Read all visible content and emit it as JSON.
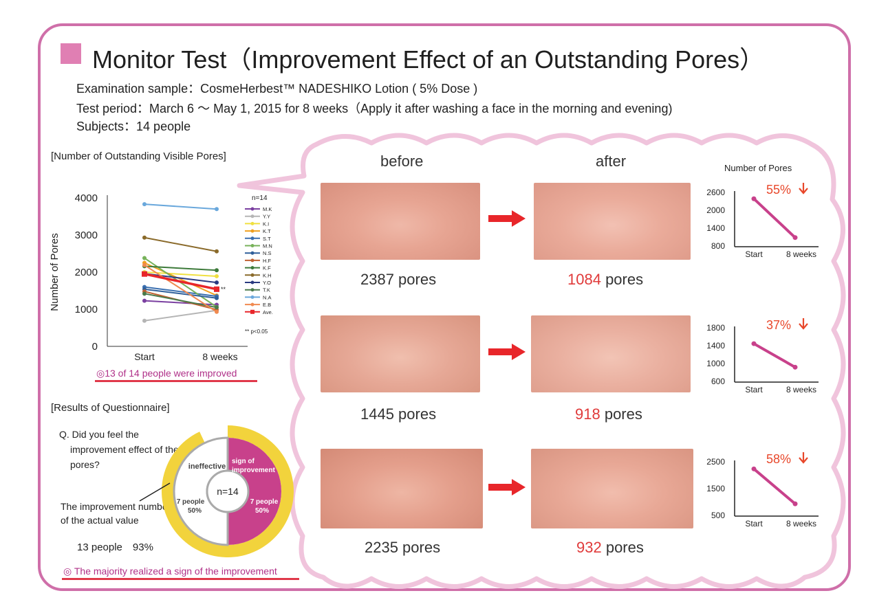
{
  "title": "Monitor Test（Improvement Effect of an Outstanding Pores）",
  "info": {
    "sample": "Examination sample：CosmeHerbest™ NADESHIKO Lotion ( 5% Dose )",
    "period": "Test period：March 6 ～ May 1, 2015 for 8 weeks（Apply it after washing a face in the morning and evening)",
    "subjects": "Subjects：14 people"
  },
  "pores_section": {
    "heading": "[Number of Outstanding  Visible Pores]",
    "improved_note": "◎13 of 14 people were improved"
  },
  "questionnaire": {
    "heading": "[Results of Questionnaire]",
    "question": "Q. Did you feel the improvement effect of the pores?",
    "actual_label": "The improvement number of the actual value",
    "actual_value": "13 people　93%",
    "note": "◎ The majority realized a sign of the improvement"
  },
  "columns": {
    "before": "before",
    "after": "after"
  },
  "rows": [
    {
      "before_text": "2387 pores",
      "after_num": "1084",
      "after_unit": " pores",
      "pct": "55%"
    },
    {
      "before_text": "1445 pores",
      "after_num": "918",
      "after_unit": " pores",
      "pct": "37%"
    },
    {
      "before_text": "2235 pores",
      "after_num": "932",
      "after_unit": " pores",
      "pct": "58%"
    }
  ],
  "mini_header": "Number of Pores",
  "colors": {
    "frame": "#cf6fa9",
    "accent_red": "#e03a3a",
    "magenta": "#c8418b",
    "donut_yellow": "#f2d33c"
  },
  "chart_data": [
    {
      "type": "line",
      "ylabel": "Number of Pores",
      "x": [
        "Start",
        "8 weeks"
      ],
      "ylim": [
        0,
        4000
      ],
      "yticks": [
        0,
        1000,
        2000,
        3000,
        4000
      ],
      "legend_title": "n=14",
      "legend_position": "right",
      "annotation": "**",
      "footnote": "** p<0.05",
      "series": [
        {
          "name": "M.K",
          "color": "#7a3fa0",
          "values": [
            1230,
            1120
          ]
        },
        {
          "name": "Y.Y",
          "color": "#b5b5b5",
          "values": [
            690,
            970
          ]
        },
        {
          "name": "K.I",
          "color": "#f0e040",
          "values": [
            2000,
            1890
          ]
        },
        {
          "name": "K.T",
          "color": "#f0a020",
          "values": [
            2250,
            1370
          ]
        },
        {
          "name": "S.T",
          "color": "#3a6fb0",
          "values": [
            1600,
            1350
          ]
        },
        {
          "name": "M.N",
          "color": "#77b25a",
          "values": [
            2380,
            1060
          ]
        },
        {
          "name": "N.S",
          "color": "#2f5f9a",
          "values": [
            1540,
            1300
          ]
        },
        {
          "name": "H.F",
          "color": "#c06030",
          "values": [
            1480,
            990
          ]
        },
        {
          "name": "K.F",
          "color": "#3d7a3a",
          "values": [
            2160,
            2050
          ]
        },
        {
          "name": "K.H",
          "color": "#8a6a2a",
          "values": [
            2930,
            2560
          ]
        },
        {
          "name": "Y.O",
          "color": "#2a3a80",
          "values": [
            1960,
            1720
          ]
        },
        {
          "name": "T.K",
          "color": "#4a7a4a",
          "values": [
            1420,
            1050
          ]
        },
        {
          "name": "N.A",
          "color": "#6aa8dc",
          "values": [
            3830,
            3700
          ]
        },
        {
          "name": "E.B",
          "color": "#f08a50",
          "values": [
            2190,
            930
          ]
        },
        {
          "name": "Ave.",
          "color": "#e8262a",
          "values": [
            1950,
            1540
          ]
        }
      ]
    },
    {
      "type": "pie",
      "center_label": "n=14",
      "slices": [
        {
          "name": "ineffective",
          "value": 7,
          "label": "7 people",
          "pct": "50%",
          "color": "#ffffff"
        },
        {
          "name": "sign of improvement",
          "value": 7,
          "label": "7 people",
          "pct": "50%",
          "color": "#c8418b"
        }
      ],
      "outer_ring": {
        "value_pct": 93,
        "color": "#f2d33c"
      }
    },
    {
      "type": "line",
      "x": [
        "Start",
        "8 weeks"
      ],
      "yticks": [
        800,
        1400,
        2000,
        2600
      ],
      "ylim": [
        800,
        2600
      ],
      "values": [
        2387,
        1084
      ],
      "annotation": "55%↓"
    },
    {
      "type": "line",
      "x": [
        "Start",
        "8 weeks"
      ],
      "yticks": [
        600,
        1000,
        1400,
        1800
      ],
      "ylim": [
        600,
        1800
      ],
      "values": [
        1445,
        918
      ],
      "annotation": "37%↓"
    },
    {
      "type": "line",
      "x": [
        "Start",
        "8 weeks"
      ],
      "yticks": [
        500,
        1500,
        2500
      ],
      "ylim": [
        500,
        2500
      ],
      "values": [
        2235,
        932
      ],
      "annotation": "58%↓"
    }
  ]
}
